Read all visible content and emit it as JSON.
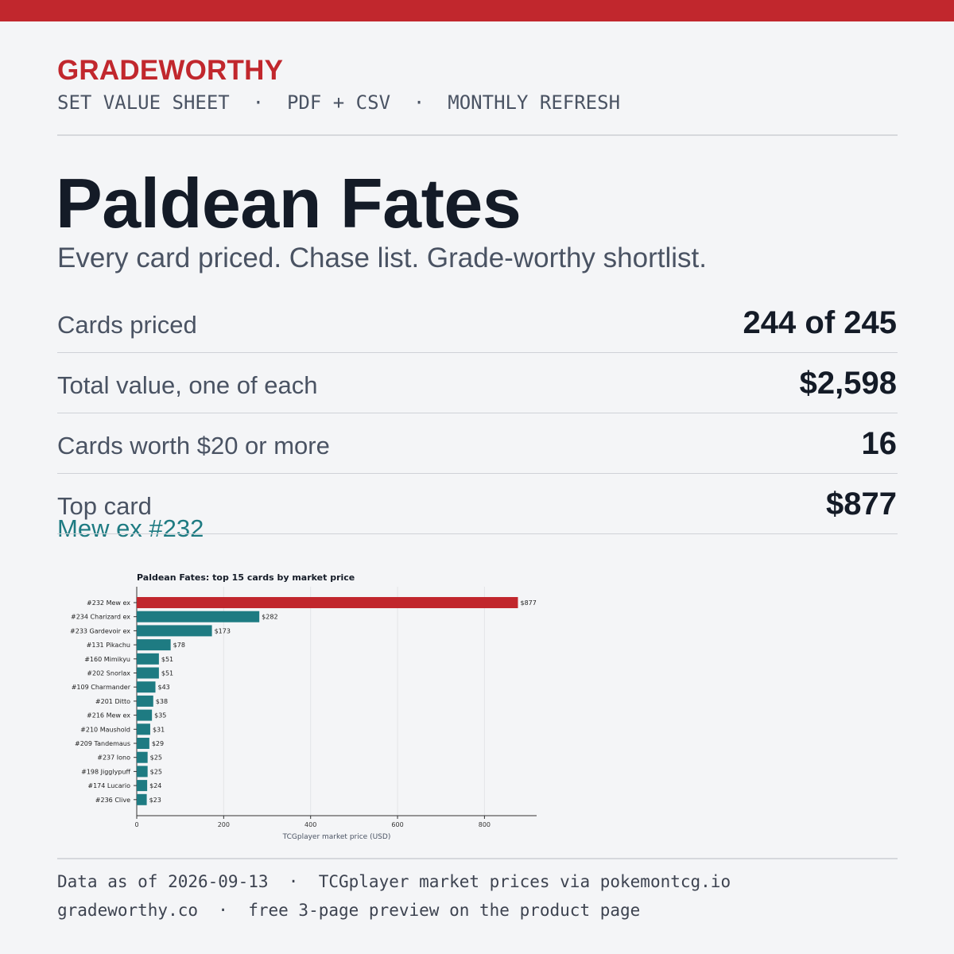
{
  "header": {
    "brand": "GRADEWORTHY",
    "tagline": "SET VALUE SHEET  ·  PDF + CSV  ·  MONTHLY REFRESH"
  },
  "hero": {
    "title": "Paldean Fates",
    "subtitle": "Every card priced. Chase list. Grade-worthy shortlist."
  },
  "stats": [
    {
      "label": "Cards priced",
      "value": "244 of 245"
    },
    {
      "label": "Total value, one of each",
      "value": "$2,598"
    },
    {
      "label": "Cards worth $20 or more",
      "value": "16"
    },
    {
      "label": "Top card",
      "value": "$877",
      "sub": "Mew ex #232"
    }
  ],
  "colors": {
    "accent": "#c1272d",
    "bar": "#1e7b82",
    "highlight_bar": "#c1272d"
  },
  "chart_data": {
    "type": "bar",
    "orientation": "horizontal",
    "title": "Paldean Fates: top 15 cards by market price",
    "xlabel": "TCGplayer market price (USD)",
    "ylabel": "",
    "xlim": [
      0,
      920
    ],
    "xticks": [
      0,
      200,
      400,
      600,
      800
    ],
    "grid": true,
    "highlight_index": 0,
    "categories": [
      "#232 Mew ex",
      "#234 Charizard ex",
      "#233 Gardevoir ex",
      "#131 Pikachu",
      "#160 Mimikyu",
      "#202 Snorlax",
      "#109 Charmander",
      "#201 Ditto",
      "#216 Mew ex",
      "#210 Maushold",
      "#209 Tandemaus",
      "#237 Iono",
      "#198 Jigglypuff",
      "#174 Lucario",
      "#236 Clive"
    ],
    "values": [
      877,
      282,
      173,
      78,
      51,
      51,
      43,
      38,
      35,
      31,
      29,
      25,
      25,
      24,
      23
    ],
    "value_labels": [
      "$877",
      "$282",
      "$173",
      "$78",
      "$51",
      "$51",
      "$43",
      "$38",
      "$35",
      "$31",
      "$29",
      "$25",
      "$25",
      "$24",
      "$23"
    ]
  },
  "footer": {
    "line1": "Data as of 2026-09-13  ·  TCGplayer market prices via pokemontcg.io",
    "line2": "gradeworthy.co  ·  free 3-page preview on the product page"
  }
}
